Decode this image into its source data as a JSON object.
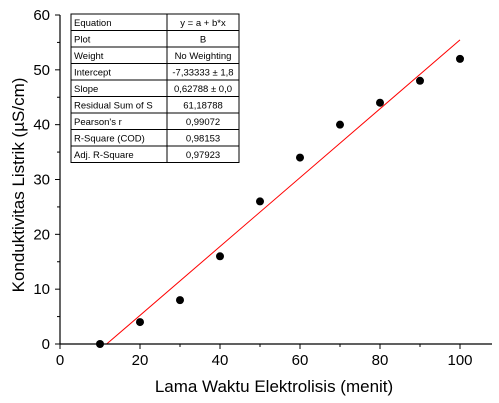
{
  "chart_data": {
    "type": "scatter",
    "xlabel": "Lama Waktu Elektrolisis (menit)",
    "ylabel": "Konduktivitas Listrik (µS/cm)",
    "xlim": [
      0,
      108
    ],
    "ylim": [
      0,
      60
    ],
    "x_ticks": [
      0,
      20,
      40,
      60,
      80,
      100
    ],
    "y_ticks": [
      0,
      10,
      20,
      30,
      40,
      50,
      60
    ],
    "grid": false,
    "point_color": "#000000",
    "fit_color": "#ff0000",
    "points": [
      {
        "x": 10,
        "y": 0
      },
      {
        "x": 20,
        "y": 4
      },
      {
        "x": 30,
        "y": 8
      },
      {
        "x": 40,
        "y": 16
      },
      {
        "x": 50,
        "y": 26
      },
      {
        "x": 60,
        "y": 34
      },
      {
        "x": 70,
        "y": 40
      },
      {
        "x": 80,
        "y": 44
      },
      {
        "x": 90,
        "y": 48
      },
      {
        "x": 100,
        "y": 52
      }
    ],
    "fit": {
      "intercept": -7.33333,
      "slope": 0.62788,
      "x_start": 11.7,
      "x_end": 100
    },
    "stats_table": [
      {
        "label": "Equation",
        "value": "y = a + b*x"
      },
      {
        "label": "Plot",
        "value": "B"
      },
      {
        "label": "Weight",
        "value": "No Weighting"
      },
      {
        "label": "Intercept",
        "value": "-7,33333 ± 1,8"
      },
      {
        "label": "Slope",
        "value": "0,62788 ± 0,0"
      },
      {
        "label": "Residual Sum of S",
        "value": "61,18788"
      },
      {
        "label": "Pearson's r",
        "value": "0,99072"
      },
      {
        "label": "R-Square (COD)",
        "value": "0,98153"
      },
      {
        "label": "Adj. R-Square",
        "value": "0,97923"
      }
    ]
  }
}
